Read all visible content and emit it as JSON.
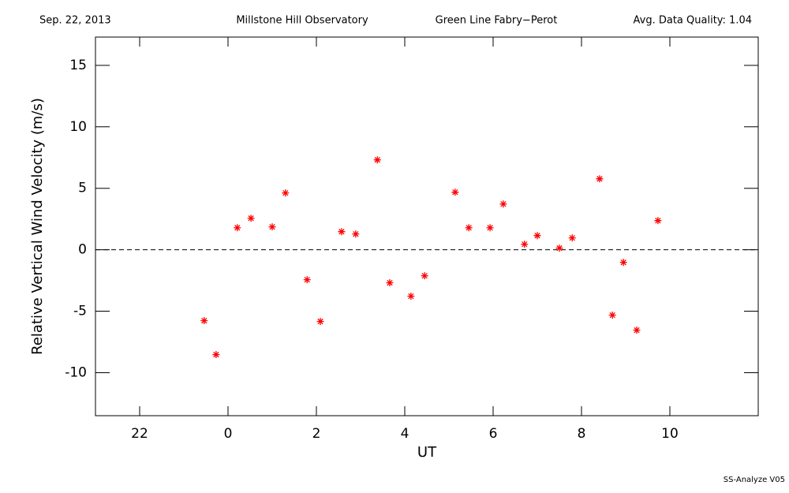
{
  "chart_data": {
    "type": "scatter",
    "header": [
      "Sep. 22, 2013",
      "Millstone Hill Observatory",
      "Green Line Fabry−Perot",
      "Avg. Data Quality: 1.04"
    ],
    "footer": "SS-Analyze V05",
    "x_label": "UT",
    "y_label": "Relative Vertical Wind Velocity (m/s)",
    "color": "#ff0000",
    "xlim": [
      -3,
      12
    ],
    "ylim": [
      -13.5,
      17.3
    ],
    "xticks": [
      {
        "value": -2,
        "label": "22"
      },
      0,
      2,
      4,
      6,
      8,
      10
    ],
    "yticks": [
      -10,
      -5,
      0,
      5,
      10,
      15
    ],
    "x": [
      -0.54,
      -0.27,
      0.21,
      0.52,
      1.0,
      1.3,
      1.79,
      2.09,
      2.57,
      2.89,
      3.38,
      3.66,
      4.14,
      4.45,
      5.14,
      5.45,
      5.93,
      6.23,
      6.71,
      7.0,
      7.5,
      7.79,
      8.41,
      8.7,
      8.95,
      9.25,
      9.73
    ],
    "values": [
      -5.77,
      -8.53,
      1.79,
      2.56,
      1.86,
      4.62,
      -2.44,
      -5.83,
      1.47,
      1.28,
      7.31,
      -2.69,
      -3.78,
      -2.12,
      4.68,
      1.79,
      1.79,
      3.72,
      0.45,
      1.15,
      0.13,
      0.96,
      5.77,
      -5.32,
      -1.03,
      -6.54,
      2.37
    ]
  }
}
